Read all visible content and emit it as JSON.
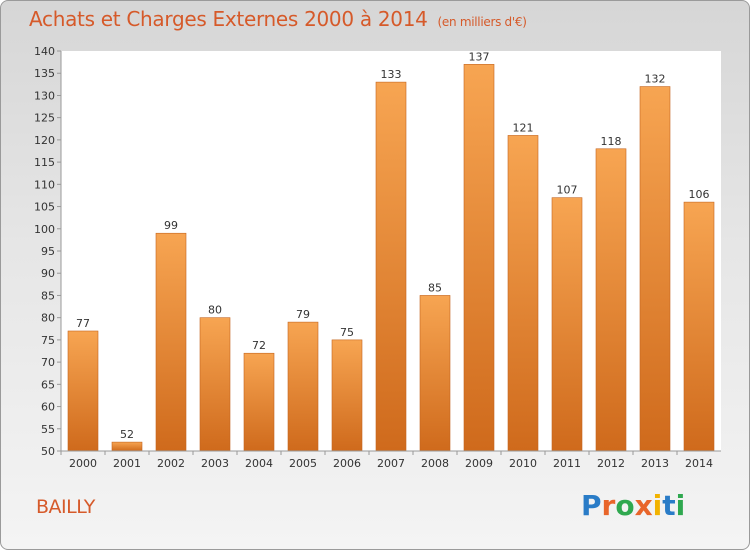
{
  "header": {
    "title": "Achats et Charges Externes 2000 à 2014",
    "unit": "(en milliers d'€)"
  },
  "footer": {
    "commune": "BAILLY",
    "logo_letters": [
      {
        "ch": "P",
        "color": "#2a7cc7"
      },
      {
        "ch": "r",
        "color": "#e8652a"
      },
      {
        "ch": "o",
        "color": "#2fa84f"
      },
      {
        "ch": "x",
        "color": "#e8652a"
      },
      {
        "ch": "i",
        "color": "#f2b300"
      },
      {
        "ch": "t",
        "color": "#2a7cc7"
      },
      {
        "ch": "i",
        "color": "#2fa84f"
      }
    ]
  },
  "colors": {
    "bar_light": "#f7a552",
    "bar_dark": "#cf6a1c",
    "title": "#d65a2a",
    "grid": "#cfcfcf"
  },
  "chart_data": {
    "type": "bar",
    "title": "Achats et Charges Externes 2000 à 2014",
    "subtitle": "(en milliers d'€)",
    "xlabel": "",
    "ylabel": "",
    "categories": [
      "2000",
      "2001",
      "2002",
      "2003",
      "2004",
      "2005",
      "2006",
      "2007",
      "2008",
      "2009",
      "2010",
      "2011",
      "2012",
      "2013",
      "2014"
    ],
    "values": [
      77,
      52,
      99,
      80,
      72,
      79,
      75,
      133,
      85,
      137,
      121,
      107,
      118,
      132,
      106
    ],
    "data_labels": [
      "77",
      "52",
      "99",
      "80",
      "72",
      "79",
      "75",
      "133",
      "85",
      "137",
      "121",
      "107",
      "118",
      "132",
      "106"
    ],
    "ylim": [
      50,
      140
    ],
    "y_ticks": [
      50,
      55,
      60,
      65,
      70,
      75,
      80,
      85,
      90,
      95,
      100,
      105,
      110,
      115,
      120,
      125,
      130,
      135,
      140
    ],
    "grid": false
  }
}
